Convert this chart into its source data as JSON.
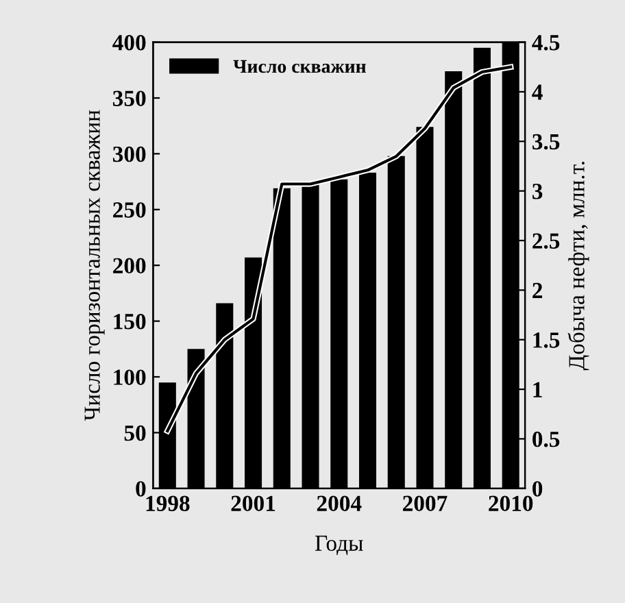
{
  "chart_data": {
    "type": "bar",
    "xlabel": "Годы",
    "ylabel": "Число горизонтальных скважин",
    "y2label": "Добыча нефти, млн.т.",
    "x": [
      1998,
      1999,
      2000,
      2001,
      2002,
      2003,
      2004,
      2005,
      2006,
      2007,
      2008,
      2009,
      2010
    ],
    "series": [
      {
        "name": "Число скважин",
        "color": "#000000",
        "values": [
          95,
          125,
          166,
          207,
          269,
          275,
          277,
          283,
          298,
          324,
          374,
          395,
          400
        ]
      },
      {
        "type": "line",
        "axis": "y2",
        "color": "#000000",
        "values": [
          0.58,
          1.16,
          1.5,
          1.71,
          3.07,
          3.07,
          3.14,
          3.21,
          3.35,
          3.63,
          4.04,
          4.2,
          4.25
        ]
      }
    ],
    "xlim": [
      1997.5,
      2010.5
    ],
    "xticks": [
      1998,
      2001,
      2004,
      2007,
      2010
    ],
    "ylim": [
      0,
      400
    ],
    "yticks": [
      0,
      50,
      100,
      150,
      200,
      250,
      300,
      350,
      400
    ],
    "y2lim": [
      0,
      4.5
    ],
    "y2ticks": [
      0,
      0.5,
      1,
      1.5,
      2,
      2.5,
      3,
      3.5,
      4,
      4.5
    ],
    "legend": "top left",
    "grid": false,
    "marker": "none",
    "line_style": "solid"
  }
}
